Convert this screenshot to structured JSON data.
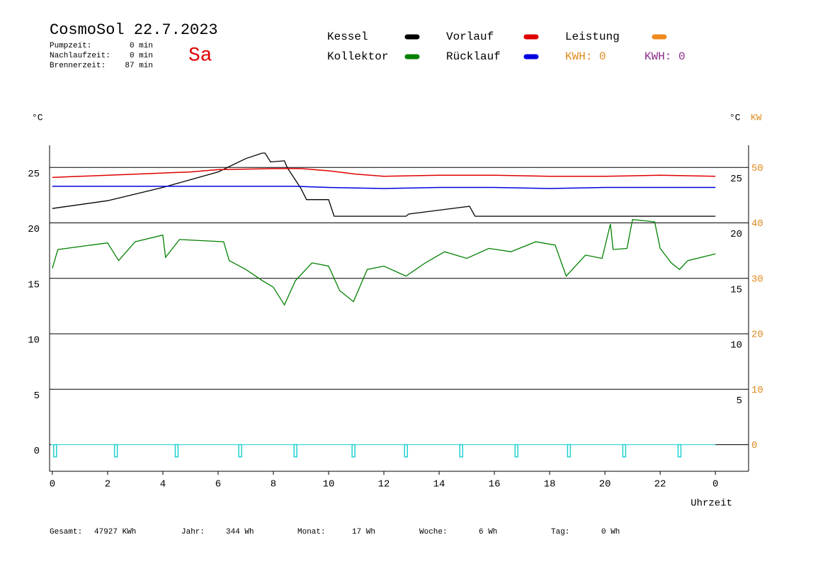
{
  "header": {
    "title": "CosmoSol 22.7.2023",
    "day": "Sa",
    "stats": [
      {
        "label": "Pumpzeit:",
        "value": "0 min"
      },
      {
        "label": "Nachlaufzeit:",
        "value": "0 min"
      },
      {
        "label": "Brennerzeit:",
        "value": "87 min"
      }
    ],
    "kwh": [
      {
        "text": "KWH: 0",
        "color": "#e08a1e"
      },
      {
        "text": "KWH: 0",
        "color": "#8a2d8a"
      }
    ]
  },
  "chart_data": {
    "type": "line",
    "ylabel": "°C",
    "ylabel_right": "°C",
    "y2label": "KW",
    "y2_color": "#e08a1e",
    "xlabel": "Uhrzeit",
    "xlim": [
      -0.1,
      25.2
    ],
    "xticks": [
      0,
      2,
      4,
      6,
      8,
      10,
      12,
      14,
      16,
      18,
      20,
      22,
      {
        "value": 24,
        "label": "0"
      }
    ],
    "ylim": [
      -2.4,
      27
    ],
    "yticks": [
      0,
      5,
      10,
      15,
      20,
      25
    ],
    "yticks_right": [
      5,
      10,
      15,
      20,
      25
    ],
    "y2lim": [
      -4.8,
      54
    ],
    "y2ticks": [
      0,
      10,
      20,
      30,
      40,
      50
    ],
    "grid": true,
    "series": [
      {
        "name": "Kessel",
        "color": "#000000",
        "x": [
          0,
          2,
          4,
          6,
          7,
          7.6,
          7.7,
          7.9,
          8.4,
          8.5,
          9.0,
          9.2,
          10.0,
          10.2,
          12.8,
          12.9,
          15.1,
          15.3,
          24
        ],
        "values": [
          21.3,
          22.0,
          23.2,
          24.6,
          25.8,
          26.3,
          26.3,
          25.5,
          25.6,
          25.0,
          23.1,
          22.1,
          22.1,
          20.6,
          20.6,
          20.8,
          21.5,
          20.6,
          20.6
        ]
      },
      {
        "name": "Kollektor",
        "color": "#008000",
        "x": [
          0,
          0.2,
          2,
          2.4,
          3,
          4,
          4.1,
          4.6,
          6.2,
          6.4,
          7,
          7.6,
          8,
          8.4,
          8.8,
          9.4,
          10,
          10.4,
          10.9,
          11.4,
          12,
          12.8,
          13.5,
          14.2,
          15,
          15.8,
          16.6,
          17.5,
          18.2,
          18.6,
          19.3,
          19.9,
          20.2,
          20.3,
          20.8,
          21,
          21.8,
          22,
          22.4,
          22.7,
          23,
          24
        ],
        "values": [
          15.9,
          17.6,
          18.2,
          16.6,
          18.3,
          18.9,
          16.9,
          18.5,
          18.3,
          16.6,
          15.8,
          14.8,
          14.2,
          12.6,
          14.8,
          16.4,
          16.1,
          13.9,
          12.9,
          15.8,
          16.1,
          15.2,
          16.4,
          17.4,
          16.8,
          17.7,
          17.4,
          18.3,
          18.0,
          15.2,
          17.1,
          16.8,
          19.9,
          17.6,
          17.7,
          20.3,
          20.1,
          17.7,
          16.4,
          15.8,
          16.6,
          17.2
        ]
      },
      {
        "name": "Vorlauf",
        "color": "#e00000",
        "x": [
          0,
          1,
          3,
          5,
          6,
          8,
          9,
          10,
          11,
          12,
          14,
          16,
          18,
          20,
          22,
          24
        ],
        "values": [
          24.1,
          24.2,
          24.4,
          24.6,
          24.8,
          24.9,
          24.9,
          24.7,
          24.4,
          24.2,
          24.3,
          24.3,
          24.2,
          24.2,
          24.3,
          24.2
        ]
      },
      {
        "name": "Rücklauf",
        "color": "#0000e0",
        "x": [
          0,
          6,
          8.8,
          10,
          12,
          14,
          16,
          18,
          20,
          24
        ],
        "values": [
          23.3,
          23.3,
          23.3,
          23.2,
          23.1,
          23.2,
          23.2,
          23.1,
          23.2,
          23.2
        ]
      },
      {
        "name": "Leistung",
        "color": "#f08a1e",
        "x": [],
        "values": []
      }
    ],
    "pulses": {
      "color": "#20d0d0",
      "x": [
        0.1,
        2.3,
        4.5,
        6.8,
        8.8,
        10.9,
        12.8,
        14.8,
        16.8,
        18.7,
        20.7,
        22.7
      ],
      "values": [
        -1.1,
        -1.1,
        -1.1,
        -1.1,
        -1.1,
        -1.1,
        -1.1,
        -1.1,
        -1.1,
        -1.1,
        -1.1,
        -1.1
      ]
    }
  },
  "footer": [
    {
      "label": "Gesamt:",
      "value": "47927 KWh"
    },
    {
      "label": "Jahr:",
      "value": "344 Wh"
    },
    {
      "label": "Monat:",
      "value": "17 Wh"
    },
    {
      "label": "Woche:",
      "value": "6 Wh"
    },
    {
      "label": "Tag:",
      "value": "0 Wh"
    }
  ]
}
